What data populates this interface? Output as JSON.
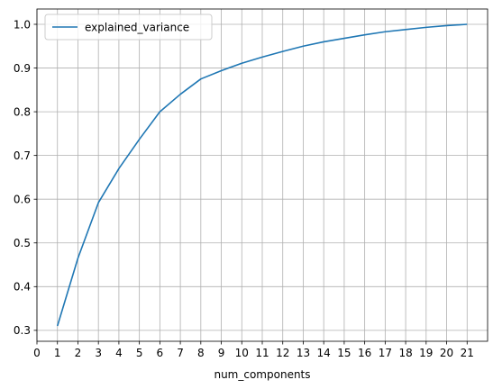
{
  "chart_data": {
    "type": "line",
    "xlabel": "num_components",
    "ylabel": "",
    "x": [
      1,
      2,
      3,
      4,
      5,
      6,
      7,
      8,
      9,
      10,
      11,
      12,
      13,
      14,
      15,
      16,
      17,
      18,
      19,
      20,
      21
    ],
    "series": [
      {
        "name": "explained_variance",
        "color": "#1f77b4",
        "values": [
          0.31,
          0.465,
          0.592,
          0.67,
          0.737,
          0.8,
          0.84,
          0.875,
          0.894,
          0.911,
          0.925,
          0.938,
          0.95,
          0.96,
          0.968,
          0.976,
          0.983,
          0.988,
          0.993,
          0.997,
          1.0
        ]
      }
    ],
    "xticks": [
      "0",
      "1",
      "2",
      "3",
      "4",
      "5",
      "6",
      "7",
      "8",
      "9",
      "10",
      "11",
      "12",
      "13",
      "14",
      "15",
      "16",
      "17",
      "18",
      "19",
      "20",
      "21"
    ],
    "yticks": [
      "0.3",
      "0.4",
      "0.5",
      "0.6",
      "0.7",
      "0.8",
      "0.9",
      "1.0"
    ],
    "xlim": [
      0,
      22
    ],
    "ylim": [
      0.275,
      1.035
    ],
    "grid": true,
    "legend_position": "upper-left"
  }
}
